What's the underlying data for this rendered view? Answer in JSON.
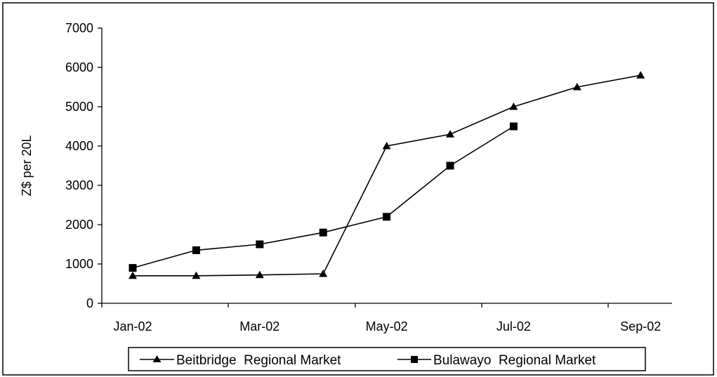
{
  "chart_data": {
    "type": "line",
    "ylabel": "Z$ per 20L",
    "xlabel": "",
    "title": "",
    "ylim": [
      0,
      7000
    ],
    "y_ticks": [
      "0",
      "1000",
      "2000",
      "3000",
      "4000",
      "5000",
      "6000",
      "7000"
    ],
    "x_ticks": [
      "Jan-02",
      "Mar-02",
      "May-02",
      "Jul-02",
      "Sep-02"
    ],
    "x_range": [
      "Jan-02",
      "Sep-02"
    ],
    "grid": false,
    "legend_position": "bottom",
    "categories": [
      "Jan-02",
      "Feb-02",
      "Mar-02",
      "Apr-02",
      "May-02",
      "Jun-02",
      "Jul-02",
      "Aug-02",
      "Sep-02"
    ],
    "series": [
      {
        "name": "Beitbridge  Regional Market",
        "marker": "triangle",
        "values": [
          700,
          700,
          720,
          750,
          4000,
          4300,
          5000,
          5500,
          5800
        ]
      },
      {
        "name": "Bulawayo  Regional Market",
        "marker": "square",
        "values": [
          900,
          1350,
          1500,
          1800,
          2200,
          3500,
          4500,
          null,
          null
        ]
      }
    ],
    "colors": {
      "line": "#000000",
      "marker": "#000000",
      "frame": "#000000"
    }
  }
}
